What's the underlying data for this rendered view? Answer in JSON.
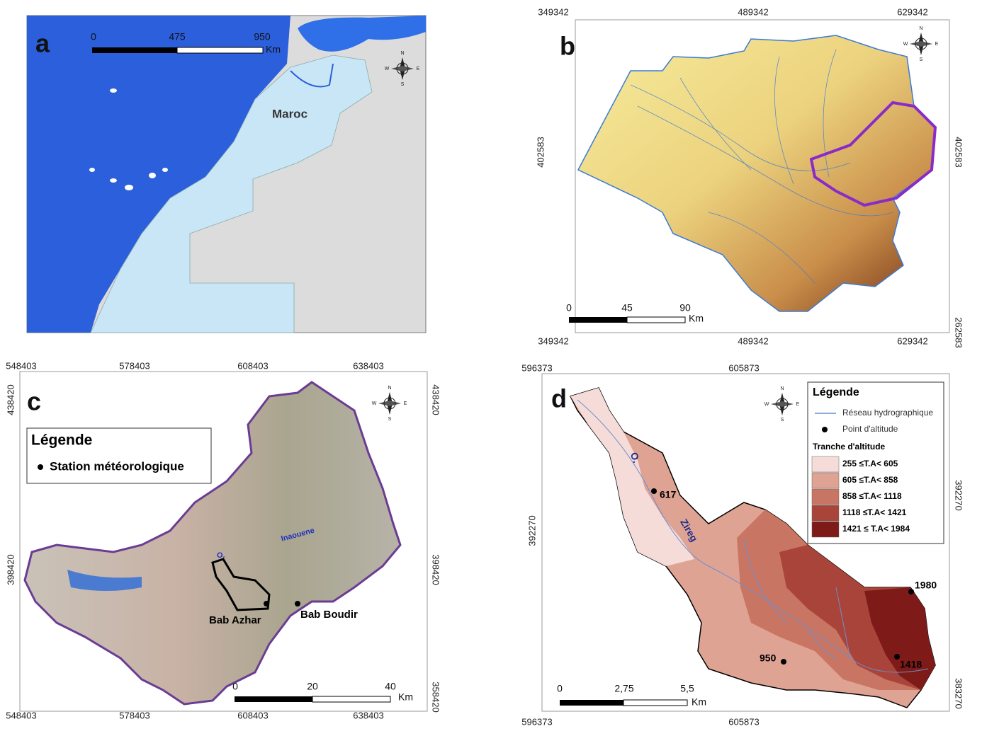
{
  "panels": [
    {
      "letter": "a",
      "scale": [
        "0",
        "475",
        "950"
      ],
      "scale_unit": "Km",
      "labels": [
        "Maroc"
      ],
      "compass": {
        "n": "N",
        "s": "S",
        "e": "E",
        "w": "W"
      }
    },
    {
      "letter": "b",
      "scale": [
        "0",
        "45",
        "90"
      ],
      "scale_unit": "Km",
      "coords": {
        "top": [
          "349342",
          "489342",
          "629342"
        ],
        "bottom": [
          "349342",
          "489342",
          "629342"
        ],
        "left": [
          "402583"
        ],
        "right": [
          "402583",
          "262583"
        ]
      },
      "compass": {
        "n": "N",
        "s": "S",
        "e": "E",
        "w": "W"
      }
    },
    {
      "letter": "c",
      "scale": [
        "0",
        "20",
        "40"
      ],
      "scale_unit": "Km",
      "coords": {
        "top": [
          "548403",
          "578403",
          "608403",
          "638403"
        ],
        "bottom": [
          "548403",
          "578403",
          "608403",
          "638403"
        ],
        "left": [
          "438420",
          "398420"
        ],
        "right": [
          "438420",
          "398420",
          "358420"
        ]
      },
      "legend": {
        "title": "Légende",
        "items": [
          "Station météorologique"
        ]
      },
      "labels": [
        "O.",
        "Inaouene",
        "Bab Azhar",
        "Bab Boudir"
      ],
      "compass": {
        "n": "N",
        "s": "S",
        "e": "E",
        "w": "W"
      }
    },
    {
      "letter": "d",
      "scale": [
        "0",
        "2,75",
        "5,5"
      ],
      "scale_unit": "Km",
      "coords": {
        "top": [
          "596373",
          "605873"
        ],
        "bottom": [
          "596373",
          "605873"
        ],
        "left": [
          "392270"
        ],
        "right": [
          "392270",
          "383270"
        ]
      },
      "legend": {
        "title": "Légende",
        "items": [
          "Réseau hydrographique",
          "Point d'altitude"
        ],
        "subtitle": "Tranche d'altitude",
        "classes": [
          "255  ≤T.A< 605",
          "605  ≤T.A< 858",
          "858  ≤T.A< 1118",
          "1118 ≤T.A< 1421",
          "1421 ≤ T.A< 1984"
        ]
      },
      "labels": [
        "O.",
        "Zireg"
      ],
      "points": [
        "617",
        "1980",
        "950",
        "1418"
      ],
      "compass": {
        "n": "N",
        "s": "S",
        "e": "E",
        "w": "W"
      }
    }
  ]
}
